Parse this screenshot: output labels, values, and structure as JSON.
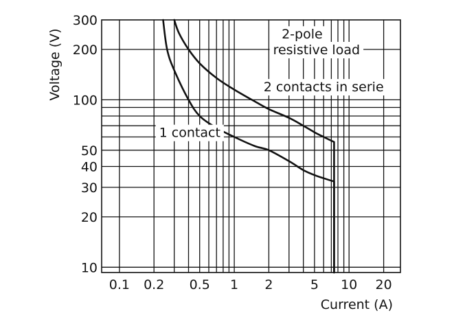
{
  "chart_data": {
    "type": "line",
    "xscale": "log",
    "yscale": "log",
    "xlim": [
      0.07,
      28
    ],
    "ylim": [
      9.3,
      300
    ],
    "xlabel": "Current (A)",
    "ylabel": "Voltage (V)",
    "x_tick_labels": [
      {
        "value": 0.1,
        "label": "0.1"
      },
      {
        "value": 0.2,
        "label": "0.2"
      },
      {
        "value": 0.5,
        "label": "0.5"
      },
      {
        "value": 1,
        "label": "1"
      },
      {
        "value": 2,
        "label": "2"
      },
      {
        "value": 5,
        "label": "5"
      },
      {
        "value": 10,
        "label": "10"
      },
      {
        "value": 20,
        "label": "20"
      }
    ],
    "y_tick_labels": [
      {
        "value": 10,
        "label": "10"
      },
      {
        "value": 20,
        "label": "20"
      },
      {
        "value": 30,
        "label": "30"
      },
      {
        "value": 40,
        "label": "40"
      },
      {
        "value": 50,
        "label": "50"
      },
      {
        "value": 100,
        "label": "100"
      },
      {
        "value": 200,
        "label": "200"
      },
      {
        "value": 300,
        "label": "300"
      }
    ],
    "x_grid": [
      0.1,
      0.2,
      0.3,
      0.4,
      0.5,
      0.6,
      0.7,
      0.8,
      0.9,
      1,
      2,
      3,
      4,
      5,
      6,
      7,
      8,
      9,
      10,
      20
    ],
    "y_grid": [
      10,
      20,
      30,
      40,
      50,
      60,
      70,
      80,
      90,
      100,
      200
    ],
    "grid": true,
    "series": [
      {
        "name": "1 contact",
        "points": [
          [
            0.24,
            300
          ],
          [
            0.26,
            200
          ],
          [
            0.3,
            150
          ],
          [
            0.4,
            100
          ],
          [
            0.5,
            80
          ],
          [
            0.7,
            68
          ],
          [
            1.0,
            60
          ],
          [
            1.5,
            53
          ],
          [
            2.0,
            50
          ],
          [
            3.0,
            43
          ],
          [
            4.0,
            38
          ],
          [
            5.0,
            35.5
          ],
          [
            6.0,
            34
          ],
          [
            7.4,
            32.5
          ],
          [
            7.4,
            9.3
          ]
        ]
      },
      {
        "name": "2 contacts in serie",
        "points": [
          [
            0.3,
            300
          ],
          [
            0.33,
            250
          ],
          [
            0.4,
            200
          ],
          [
            0.5,
            165
          ],
          [
            0.7,
            135
          ],
          [
            1.0,
            115
          ],
          [
            1.5,
            98
          ],
          [
            2.0,
            88
          ],
          [
            3.0,
            78
          ],
          [
            4.0,
            70
          ],
          [
            5.0,
            64
          ],
          [
            6.0,
            60
          ],
          [
            7.4,
            56
          ],
          [
            7.4,
            9.3
          ]
        ]
      }
    ],
    "annotations": [
      {
        "text": "2-pole",
        "x": 3.9,
        "y": 248
      },
      {
        "text": "resistive load",
        "x": 5.2,
        "y": 200
      },
      {
        "text": "2 contacts in serie",
        "x": 6.0,
        "y": 120
      },
      {
        "text": "1 contact",
        "x": 0.41,
        "y": 64
      }
    ]
  }
}
